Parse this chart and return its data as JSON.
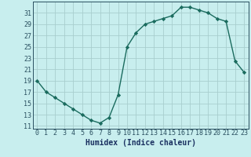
{
  "x": [
    0,
    1,
    2,
    3,
    4,
    5,
    6,
    7,
    8,
    9,
    10,
    11,
    12,
    13,
    14,
    15,
    16,
    17,
    18,
    19,
    20,
    21,
    22,
    23
  ],
  "y": [
    19,
    17,
    16,
    15,
    14,
    13,
    12,
    11.5,
    12.5,
    16.5,
    25,
    27.5,
    29,
    29.5,
    30,
    30.5,
    32,
    32,
    31.5,
    31,
    30,
    29.5,
    22.5,
    20.5
  ],
  "line_color": "#1a6b5e",
  "marker": "D",
  "marker_size": 2.2,
  "bg_color": "#c8eeee",
  "grid_color": "#a8cece",
  "xlabel": "Humidex (Indice chaleur)",
  "ylim": [
    10.5,
    33
  ],
  "xlim": [
    -0.5,
    23.5
  ],
  "yticks": [
    11,
    13,
    15,
    17,
    19,
    21,
    23,
    25,
    27,
    29,
    31
  ],
  "xticks": [
    0,
    1,
    2,
    3,
    4,
    5,
    6,
    7,
    8,
    9,
    10,
    11,
    12,
    13,
    14,
    15,
    16,
    17,
    18,
    19,
    20,
    21,
    22,
    23
  ],
  "tick_color": "#2a5060",
  "label_color": "#1a3060",
  "linewidth": 1.0,
  "xlabel_fontsize": 7.0,
  "tick_fontsize": 6.0
}
